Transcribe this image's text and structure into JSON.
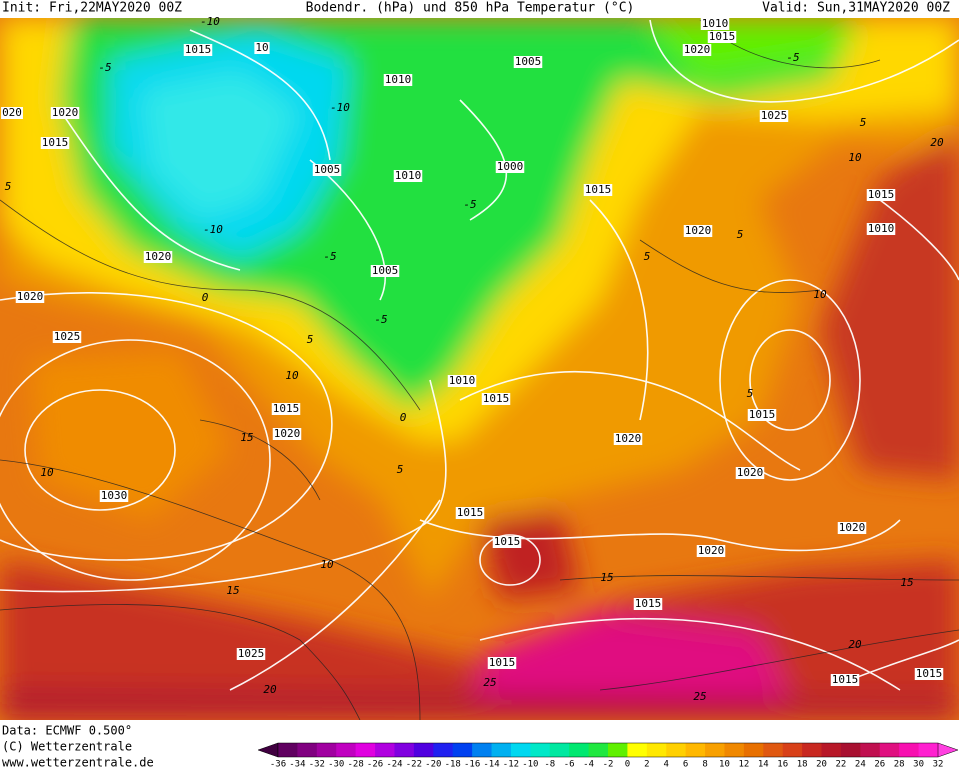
{
  "header": {
    "init": "Init: Fri,22MAY2020 00Z",
    "title": "Bodendr. (hPa) und 850 hPa Temperatur (°C)",
    "valid": "Valid: Sun,31MAY2020 00Z"
  },
  "footer": {
    "data": "Data: ECMWF  0.500°",
    "copyright": "(C) Wetterzentrale",
    "url": "www.wetterzentrale.de"
  },
  "isobar_labels": [
    "1015",
    "10",
    "1010",
    "1015",
    "1020",
    "1005",
    "1010",
    "1020",
    "1015",
    "020",
    "1025",
    "1005",
    "1010",
    "1000",
    "1015",
    "1015",
    "1020",
    "1010",
    "1020",
    "1005",
    "1020",
    "1025",
    "1010",
    "1015",
    "1015",
    "1020",
    "1020",
    "1015",
    "1020",
    "1030",
    "1015",
    "1015",
    "1020",
    "1020",
    "1015",
    "1025",
    "1015",
    "1015",
    "1015"
  ],
  "temperature_labels": [
    "-10",
    "-5",
    "-10",
    "-5",
    "-10",
    "-5",
    "-5",
    "0",
    "5",
    "10",
    "15",
    "10",
    "5",
    "0",
    "10",
    "15",
    "20",
    "15",
    "15",
    "20",
    "25",
    "25",
    "5",
    "5",
    "10",
    "5",
    "10",
    "5",
    "20",
    "-5",
    "5"
  ],
  "colorbar": {
    "ticks": [
      "-36",
      "-34",
      "-32",
      "-30",
      "-28",
      "-26",
      "-24",
      "-22",
      "-20",
      "-18",
      "-16",
      "-14",
      "-12",
      "-10",
      "-8",
      "-6",
      "-4",
      "-2",
      "0",
      "2",
      "4",
      "6",
      "8",
      "10",
      "12",
      "14",
      "16",
      "18",
      "20",
      "22",
      "24",
      "26",
      "28",
      "30",
      "32"
    ]
  }
}
